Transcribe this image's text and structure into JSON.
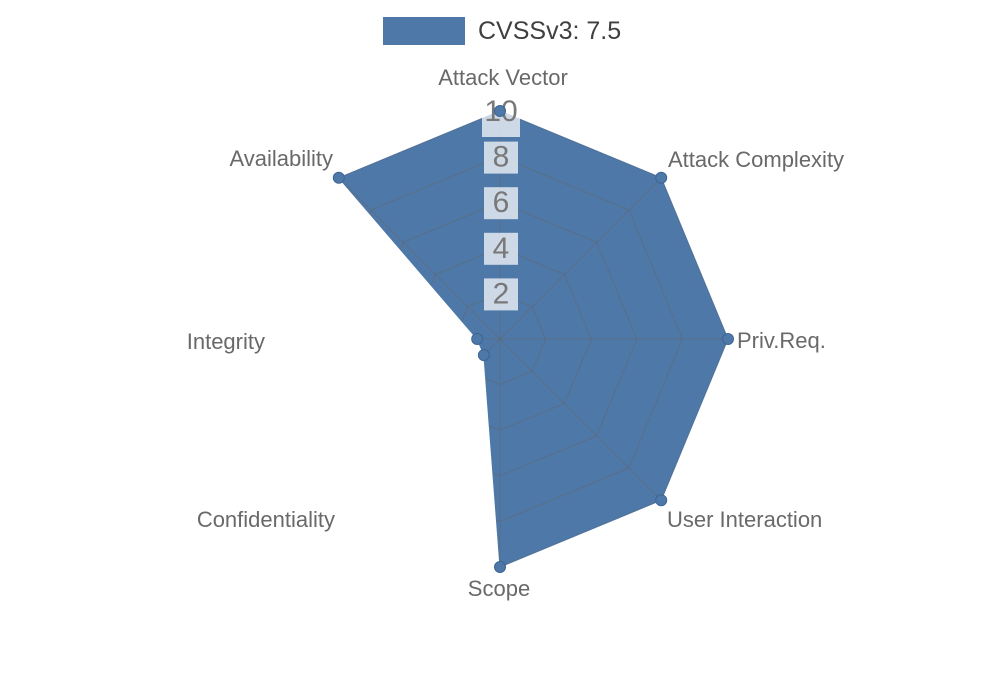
{
  "legend": {
    "label": "CVSSv3: 7.5",
    "swatch_color": "#4d78a8"
  },
  "chart_data": {
    "type": "radar",
    "title": "",
    "legend_position": "top",
    "categories": [
      "Attack Vector",
      "Attack Complexity",
      "Priv.Req.",
      "User Interaction",
      "Scope",
      "Confidentiality",
      "Integrity",
      "Availability"
    ],
    "series": [
      {
        "name": "CVSSv3: 7.5",
        "values": [
          10,
          10,
          10,
          10,
          10,
          1,
          1,
          10
        ]
      }
    ],
    "scale": {
      "min": 0,
      "max": 10,
      "ticks": [
        2,
        4,
        6,
        8,
        10
      ]
    },
    "grid": {
      "shape": "polygon",
      "spokes": 8,
      "rings": 5,
      "visible_only_inside_fill": true
    },
    "colors": {
      "fill": "#4d78a8",
      "marker_stroke": "#3d6594",
      "grid_line": "#666666",
      "axis_label": "#696969",
      "tick_label": "#787878",
      "tick_backdrop": "rgba(255,255,255,0.72)",
      "legend_text": "#3f3f3f"
    }
  }
}
